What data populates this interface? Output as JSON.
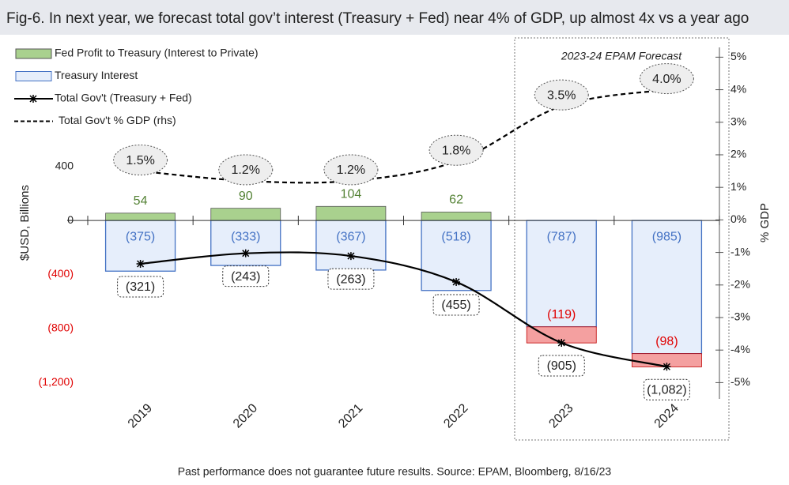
{
  "chart_data": {
    "type": "bar",
    "title": "Fig-6.  In next year, we forecast total gov’t interest (Treasury + Fed) near 4% of GDP, up almost 4x vs a year ago",
    "footnote": "Past performance does not guarantee future results.  Source: EPAM, Bloomberg, 8/16/23",
    "annotation": "2023-24 EPAM Forecast",
    "y_label": "$USD, Billions",
    "y2_label": "% GDP",
    "categories": [
      "2019",
      "2020",
      "2021",
      "2022",
      "2023",
      "2024"
    ],
    "series": [
      {
        "name": "Fed Profit to Treasury (Interest to Private)",
        "type": "bar",
        "color": "#a9d18e",
        "negative_color": "#f4a0a0",
        "values": [
          54,
          90,
          104,
          62,
          -119,
          -98
        ],
        "value_labels": [
          "54",
          "90",
          "104",
          "62",
          "(119)",
          "(98)"
        ]
      },
      {
        "name": "Treasury Interest",
        "type": "bar",
        "color": "#4472c4",
        "values": [
          -375,
          -333,
          -367,
          -518,
          -787,
          -985
        ],
        "value_labels": [
          "(375)",
          "(333)",
          "(367)",
          "(518)",
          "(787)",
          "(985)"
        ]
      },
      {
        "name": "Total Gov't (Treasury + Fed)",
        "type": "line",
        "color": "#000000",
        "values": [
          -321,
          -243,
          -263,
          -455,
          -905,
          -1082
        ],
        "value_labels": [
          "(321)",
          "(243)",
          "(263)",
          "(455)",
          "(905)",
          "(1,082)"
        ]
      },
      {
        "name": "Total Gov't % GDP (rhs)",
        "type": "line",
        "axis": "y2",
        "dashed": true,
        "color": "#000000",
        "values": [
          1.5,
          1.2,
          1.2,
          1.8,
          3.5,
          4.0
        ],
        "value_labels": [
          "1.5%",
          "1.2%",
          "1.2%",
          "1.8%",
          "3.5%",
          "4.0%"
        ]
      }
    ],
    "ylim": [
      -1320,
      1280
    ],
    "yticks": [
      400,
      0,
      {
        "value": -400,
        "label": "(400)"
      },
      {
        "value": -800,
        "label": "(800)"
      },
      {
        "value": -1200,
        "label": "(1,200)"
      }
    ],
    "negative_tick_color": "#e00000",
    "y2lim": [
      -5.5,
      5.3
    ],
    "y2ticks": [
      {
        "value": 5,
        "label": "5%"
      },
      {
        "value": 4,
        "label": "4%"
      },
      {
        "value": 3,
        "label": "3%"
      },
      {
        "value": 2,
        "label": "2%"
      },
      {
        "value": 1,
        "label": "1%"
      },
      {
        "value": 0,
        "label": "0%"
      },
      {
        "value": -1,
        "label": "-1%"
      },
      {
        "value": -2,
        "label": "-2%"
      },
      {
        "value": -3,
        "label": "-3%"
      },
      {
        "value": -4,
        "label": "-4%"
      },
      {
        "value": -5,
        "label": "-5%"
      }
    ]
  }
}
